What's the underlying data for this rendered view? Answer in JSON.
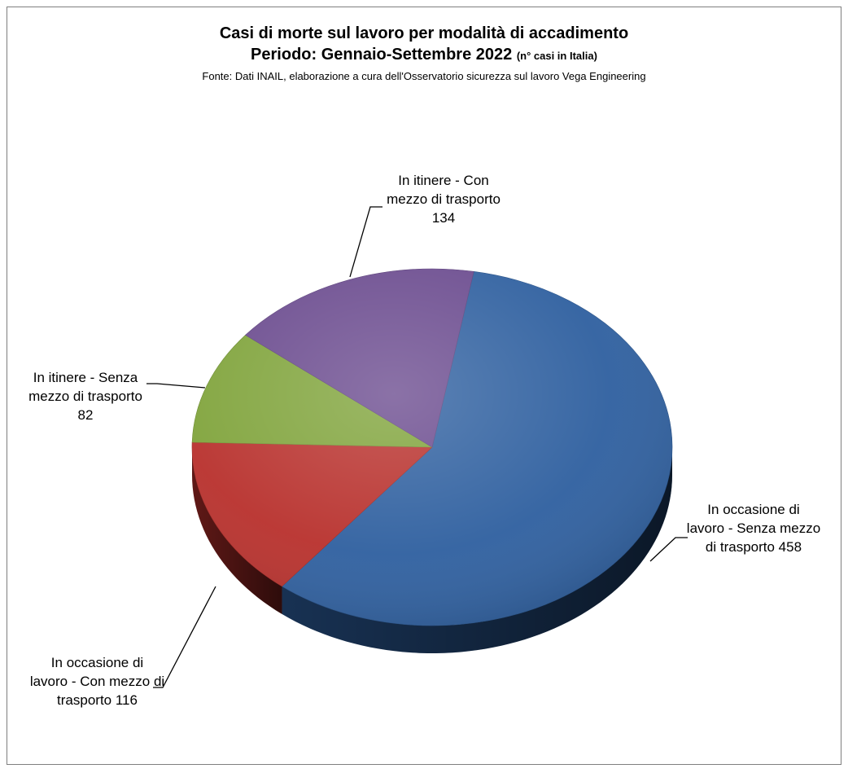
{
  "chart_data": {
    "type": "pie",
    "title": "Casi di morte sul lavoro per modalità di accadimento",
    "subtitle_main": "Periodo: Gennaio-Settembre 2022",
    "subtitle_note": "(n° casi in Italia)",
    "source": "Fonte: Dati INAIL, elaborazione a cura dell'Osservatorio sicurezza sul lavoro Vega Engineering",
    "three_d": true,
    "legend": "none",
    "slices": [
      {
        "label_lines": [
          "In occasione di",
          "lavoro - Senza mezzo",
          "di trasporto 458"
        ],
        "category": "In occasione di lavoro - Senza mezzo di trasporto",
        "value": 458,
        "color": "#2e5f9f"
      },
      {
        "label_lines": [
          "In occasione di",
          "lavoro - Con mezzo di",
          "trasporto 116"
        ],
        "category": "In occasione di lavoro - Con mezzo di trasporto",
        "value": 116,
        "color": "#b8302c"
      },
      {
        "label_lines": [
          "In itinere - Senza",
          "mezzo di trasporto",
          "82"
        ],
        "category": "In itinere - Senza mezzo di trasporto",
        "value": 82,
        "color": "#7fa33a"
      },
      {
        "label_lines": [
          "In itinere - Con",
          "mezzo di trasporto",
          "134"
        ],
        "category": "In itinere - Con mezzo di trasporto",
        "value": 134,
        "color": "#6a4a8e"
      }
    ]
  }
}
